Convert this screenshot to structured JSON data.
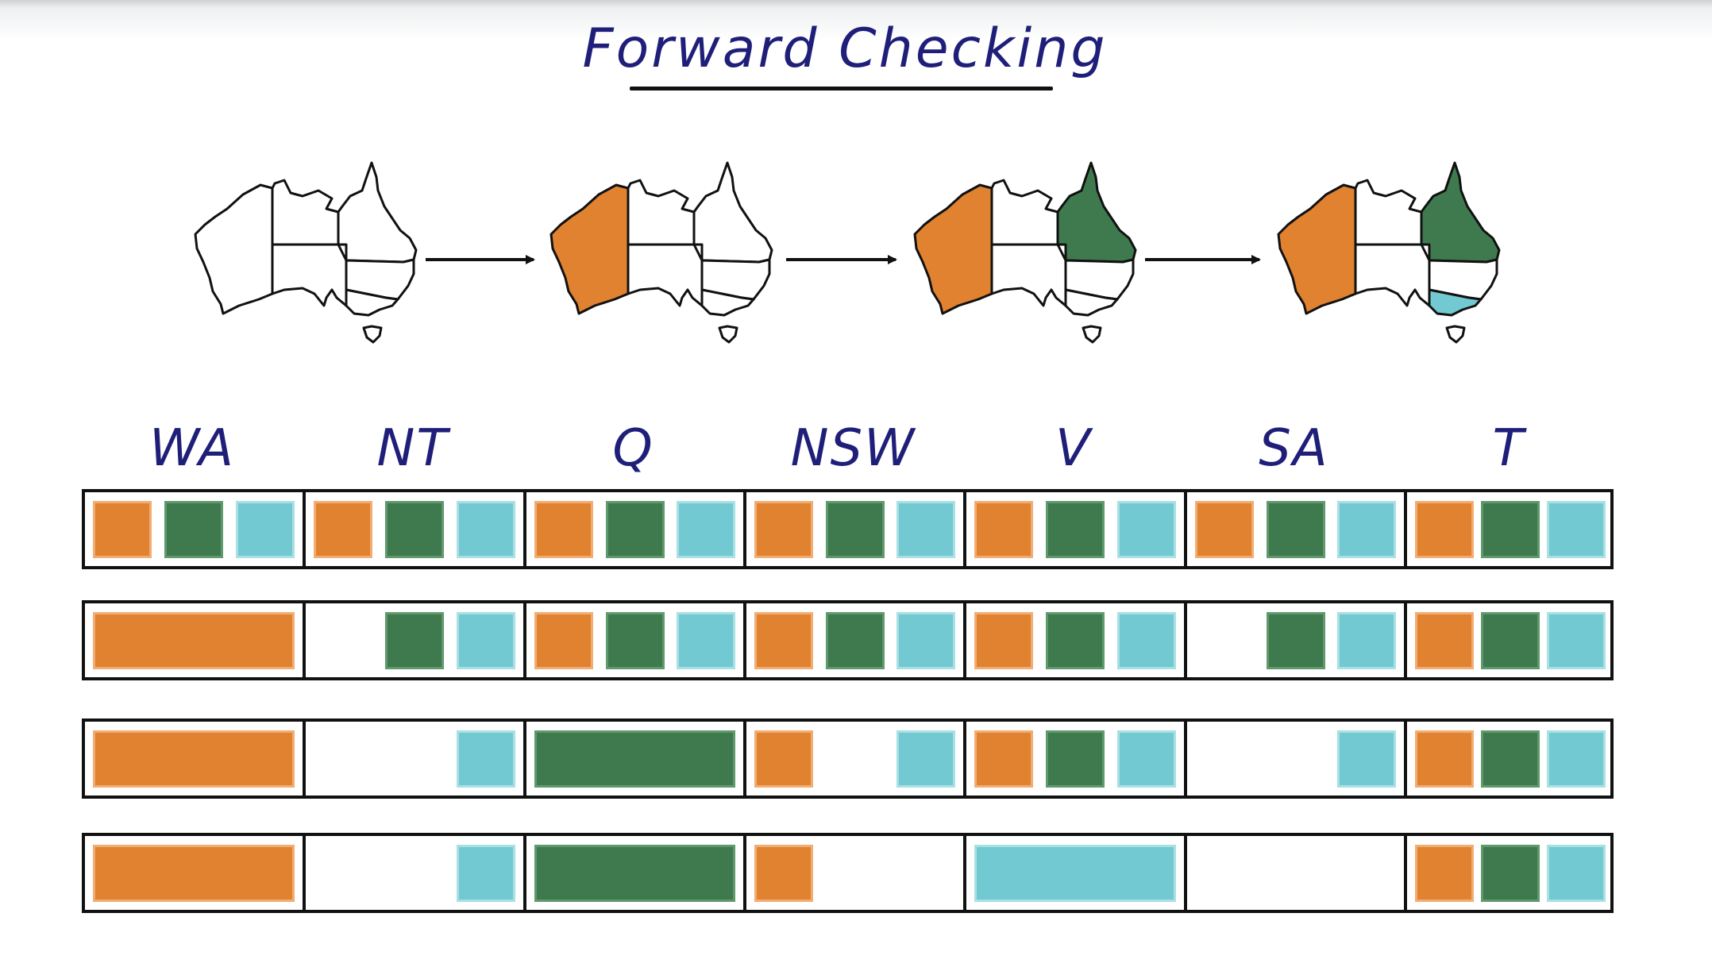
{
  "title": "Forward Checking",
  "colors": {
    "orange": "#e0822f",
    "green": "#3f7a4f",
    "blue": "#72c9d1"
  },
  "map_sequence": [
    {
      "name": "map-step-1",
      "WA": "white",
      "NT": "white",
      "Q": "white",
      "NSW": "white",
      "V": "white",
      "SA": "white",
      "T": "white"
    },
    {
      "name": "map-step-2",
      "WA": "orange",
      "NT": "white",
      "Q": "white",
      "NSW": "white",
      "V": "white",
      "SA": "white",
      "T": "white"
    },
    {
      "name": "map-step-3",
      "WA": "orange",
      "NT": "white",
      "Q": "green",
      "NSW": "white",
      "V": "white",
      "SA": "white",
      "T": "white"
    },
    {
      "name": "map-step-4",
      "WA": "orange",
      "NT": "white",
      "Q": "green",
      "NSW": "white",
      "V": "blue",
      "SA": "white",
      "T": "white"
    }
  ],
  "columns": [
    "WA",
    "NT",
    "Q",
    "NSW",
    "V",
    "SA",
    "T"
  ],
  "domain_rows": [
    [
      [
        "orange",
        "green",
        "blue"
      ],
      [
        "orange",
        "green",
        "blue"
      ],
      [
        "orange",
        "green",
        "blue"
      ],
      [
        "orange",
        "green",
        "blue"
      ],
      [
        "orange",
        "green",
        "blue"
      ],
      [
        "orange",
        "green",
        "blue"
      ],
      [
        "orange",
        "green",
        "blue"
      ]
    ],
    [
      [
        "orange"
      ],
      [
        "green",
        "blue"
      ],
      [
        "orange",
        "green",
        "blue"
      ],
      [
        "orange",
        "green",
        "blue"
      ],
      [
        "orange",
        "green",
        "blue"
      ],
      [
        "green",
        "blue"
      ],
      [
        "orange",
        "green",
        "blue"
      ]
    ],
    [
      [
        "orange"
      ],
      [
        "blue"
      ],
      [
        "green"
      ],
      [
        "orange",
        "blue"
      ],
      [
        "orange",
        "green",
        "blue"
      ],
      [
        "blue"
      ],
      [
        "orange",
        "green",
        "blue"
      ]
    ],
    [
      [
        "orange"
      ],
      [
        "blue"
      ],
      [
        "green"
      ],
      [
        "orange"
      ],
      [
        "blue"
      ],
      [],
      [
        "orange",
        "green",
        "blue"
      ]
    ]
  ],
  "assigned_cells": [
    [
      null,
      null,
      null,
      null,
      null,
      null,
      null
    ],
    [
      "orange",
      null,
      null,
      null,
      null,
      null,
      null
    ],
    [
      "orange",
      null,
      "green",
      null,
      null,
      null,
      null
    ],
    [
      "orange",
      null,
      "green",
      null,
      "blue",
      null,
      null
    ]
  ]
}
